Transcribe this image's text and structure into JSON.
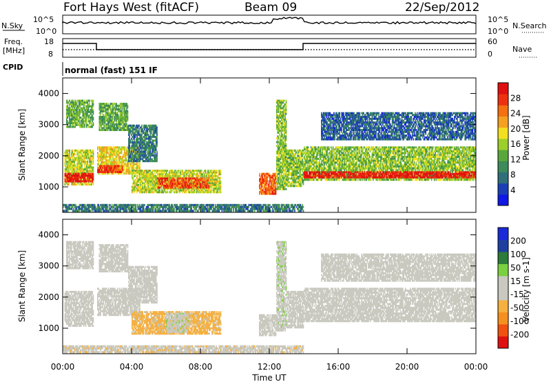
{
  "header": {
    "station": "Fort Hays West (fitACF)",
    "beam": "Beam 09",
    "date": "22/Sep/2012"
  },
  "strip": {
    "nsky_label": "N.Sky",
    "nsky_ticks": [
      "10^5",
      "10^0"
    ],
    "nsearch_label": "N.Search",
    "nsearch_ticks": [
      "10^5",
      "10^0"
    ],
    "freq_label": "Freq.",
    "freq_unit": "[MHz]",
    "freq_ticks": [
      "18",
      "8"
    ],
    "nave_label": "Nave",
    "nave_ticks": [
      "60",
      "0"
    ],
    "cpid_label": "CPID",
    "cpid_text": "normal (fast) 151 IF"
  },
  "axes": {
    "ylabel": "Slant Range [km]",
    "xlabel": "Time UT",
    "x_ticks": [
      "00:00",
      "04:00",
      "08:00",
      "12:00",
      "16:00",
      "20:00",
      "00:00"
    ],
    "y_ticks": [
      "1000",
      "2000",
      "3000",
      "4000"
    ],
    "xlim_hours": [
      0,
      24
    ],
    "ylim_km": [
      180,
      4500
    ]
  },
  "colors": {
    "power": [
      "#1018e6",
      "#1a3fb4",
      "#2f6f7a",
      "#3d8a5a",
      "#5aa83c",
      "#9ccf2a",
      "#f2e020",
      "#f5a020",
      "#f57010",
      "#ee3010",
      "#e01010"
    ],
    "velocity": [
      "#e01010",
      "#f05010",
      "#f59020",
      "#f5b040",
      "#c9c9c0",
      "#c9c9c0",
      "#7bd040",
      "#2e7a3a",
      "#1e3fa0",
      "#1a2ad8"
    ]
  },
  "chart_data": [
    {
      "type": "heatmap",
      "title": "Power",
      "xlabel": "Time UT",
      "ylabel": "Slant Range [km]",
      "colorbar_label": "Power [dB]",
      "colorbar_ticks": [
        "4",
        "8",
        "12",
        "16",
        "20",
        "24",
        "28"
      ],
      "colorbar_range": [
        0,
        30
      ],
      "xlim": [
        0,
        24
      ],
      "ylim": [
        180,
        4500
      ],
      "regions": [
        {
          "t0": 0.1,
          "t1": 1.8,
          "r0": 1050,
          "r1": 2200,
          "value": 16
        },
        {
          "t0": 0.1,
          "t1": 1.8,
          "r0": 1150,
          "r1": 1450,
          "value": 28
        },
        {
          "t0": 0.2,
          "t1": 1.8,
          "r0": 2900,
          "r1": 3800,
          "value": 12
        },
        {
          "t0": 2.0,
          "t1": 4.5,
          "r0": 1400,
          "r1": 2300,
          "value": 18
        },
        {
          "t0": 2.0,
          "t1": 3.5,
          "r0": 1450,
          "r1": 1700,
          "value": 26
        },
        {
          "t0": 2.1,
          "t1": 3.8,
          "r0": 2800,
          "r1": 3700,
          "value": 12
        },
        {
          "t0": 3.8,
          "t1": 5.5,
          "r0": 1800,
          "r1": 3000,
          "value": 8
        },
        {
          "t0": 4.0,
          "t1": 9.2,
          "r0": 800,
          "r1": 1550,
          "value": 16
        },
        {
          "t0": 5.5,
          "t1": 8.5,
          "r0": 950,
          "r1": 1300,
          "value": 25
        },
        {
          "t0": 11.4,
          "t1": 12.4,
          "r0": 750,
          "r1": 1450,
          "value": 24
        },
        {
          "t0": 12.4,
          "t1": 13.0,
          "r0": 900,
          "r1": 3800,
          "value": 14
        },
        {
          "t0": 13.0,
          "t1": 14.0,
          "r0": 1000,
          "r1": 2200,
          "value": 14
        },
        {
          "t0": 14.0,
          "t1": 24.0,
          "r0": 1200,
          "r1": 2300,
          "value": 14
        },
        {
          "t0": 14.0,
          "t1": 24.0,
          "r0": 1280,
          "r1": 1500,
          "value": 28
        },
        {
          "t0": 15.0,
          "t1": 24.0,
          "r0": 2500,
          "r1": 3400,
          "value": 6
        },
        {
          "t0": 0.0,
          "t1": 14.0,
          "r0": 200,
          "r1": 450,
          "value": 8
        }
      ]
    },
    {
      "type": "heatmap",
      "title": "Velocity",
      "xlabel": "Time UT",
      "ylabel": "Slant Range [km]",
      "colorbar_label": "Velocity [m s-1]",
      "colorbar_ticks": [
        "-200",
        "-100",
        "-50",
        "-15",
        "15",
        "50",
        "100",
        "200"
      ],
      "colorbar_range": [
        -250,
        250
      ],
      "xlim": [
        0,
        24
      ],
      "ylim": [
        180,
        4500
      ],
      "regions": [
        {
          "t0": 0.1,
          "t1": 1.8,
          "r0": 1050,
          "r1": 2200,
          "value": 0
        },
        {
          "t0": 0.2,
          "t1": 1.8,
          "r0": 2900,
          "r1": 3800,
          "value": -30
        },
        {
          "t0": 2.0,
          "t1": 4.5,
          "r0": 1400,
          "r1": 2300,
          "value": 0
        },
        {
          "t0": 2.1,
          "t1": 3.8,
          "r0": 2800,
          "r1": 3700,
          "value": -20
        },
        {
          "t0": 3.8,
          "t1": 5.5,
          "r0": 1800,
          "r1": 3000,
          "value": 0
        },
        {
          "t0": 4.0,
          "t1": 9.2,
          "r0": 800,
          "r1": 1550,
          "value": -60
        },
        {
          "t0": 6.0,
          "t1": 7.3,
          "r0": 850,
          "r1": 1500,
          "value": 40
        },
        {
          "t0": 11.4,
          "t1": 12.4,
          "r0": 750,
          "r1": 1450,
          "value": 0
        },
        {
          "t0": 12.4,
          "t1": 13.0,
          "r0": 900,
          "r1": 3800,
          "value": 40
        },
        {
          "t0": 13.0,
          "t1": 14.0,
          "r0": 1000,
          "r1": 2200,
          "value": 0
        },
        {
          "t0": 14.0,
          "t1": 24.0,
          "r0": 1200,
          "r1": 2300,
          "value": 0
        },
        {
          "t0": 15.0,
          "t1": 24.0,
          "r0": 2500,
          "r1": 3400,
          "value": 0
        },
        {
          "t0": 0.0,
          "t1": 14.0,
          "r0": 200,
          "r1": 450,
          "value": -40
        }
      ]
    }
  ]
}
